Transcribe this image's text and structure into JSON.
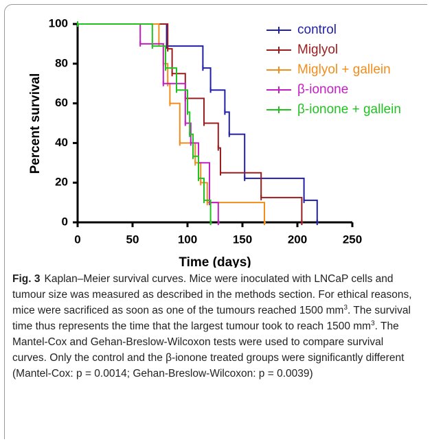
{
  "chart_data": {
    "type": "step",
    "xlabel": "Time (days)",
    "ylabel": "Percent survival",
    "xlim": [
      0,
      250
    ],
    "xticks": [
      0,
      50,
      100,
      150,
      200,
      250
    ],
    "ylim": [
      0,
      100
    ],
    "yticks": [
      0,
      20,
      40,
      60,
      80,
      100
    ],
    "series": [
      {
        "name": "control",
        "color": "#1f1fa8",
        "x": [
          0,
          81,
          114,
          121,
          134,
          138,
          152,
          206,
          218
        ],
        "values": [
          100,
          88.9,
          77.8,
          66.7,
          55.6,
          44.4,
          22.2,
          11.1,
          0
        ]
      },
      {
        "name": "Miglyol",
        "color": "#9b1c1c",
        "x": [
          0,
          82,
          86,
          98,
          115,
          128,
          130,
          167,
          204
        ],
        "values": [
          100,
          87.5,
          75,
          62.5,
          50,
          37.5,
          25,
          12.5,
          0
        ]
      },
      {
        "name": "Miglyol + gallein",
        "color": "#f28c1a",
        "x": [
          0,
          74,
          78,
          82,
          84,
          93,
          107,
          112,
          118,
          170
        ],
        "values": [
          100,
          90,
          80,
          70,
          60,
          40,
          30,
          20,
          10,
          0
        ]
      },
      {
        "name": "β-ionone",
        "color": "#c21fc2",
        "x": [
          0,
          57,
          78,
          98,
          103,
          110,
          120,
          128
        ],
        "values": [
          100,
          90,
          70,
          50,
          40,
          30,
          10,
          0
        ]
      },
      {
        "name": "β-ionone + gallein",
        "color": "#1fc21f",
        "x": [
          0,
          68,
          80,
          90,
          100,
          102,
          105,
          110,
          115,
          121
        ],
        "values": [
          100,
          88.9,
          77.8,
          66.7,
          55.6,
          44.4,
          33.3,
          22.2,
          11.1,
          0
        ]
      }
    ]
  },
  "caption": {
    "label": "Fig. 3",
    "parts": [
      "Kaplan–Meier survival curves. Mice were inoculated with LNCaP cells and tumour size was measured as described in the methods section. For ethical reasons, mice were sacrificed as soon as one of the tumours reached 1500 mm",
      "3",
      ". The survival time thus represents the time that the largest tumour took to reach 1500 mm",
      "3",
      ". The Mantel-Cox and Gehan-Breslow-Wilcoxon tests were used to compare survival curves. Only the control and the β-ionone treated groups were significantly different (Mantel-Cox: p = 0.0014; Gehan-Breslow-Wilcoxon: p = 0.0039)"
    ]
  }
}
